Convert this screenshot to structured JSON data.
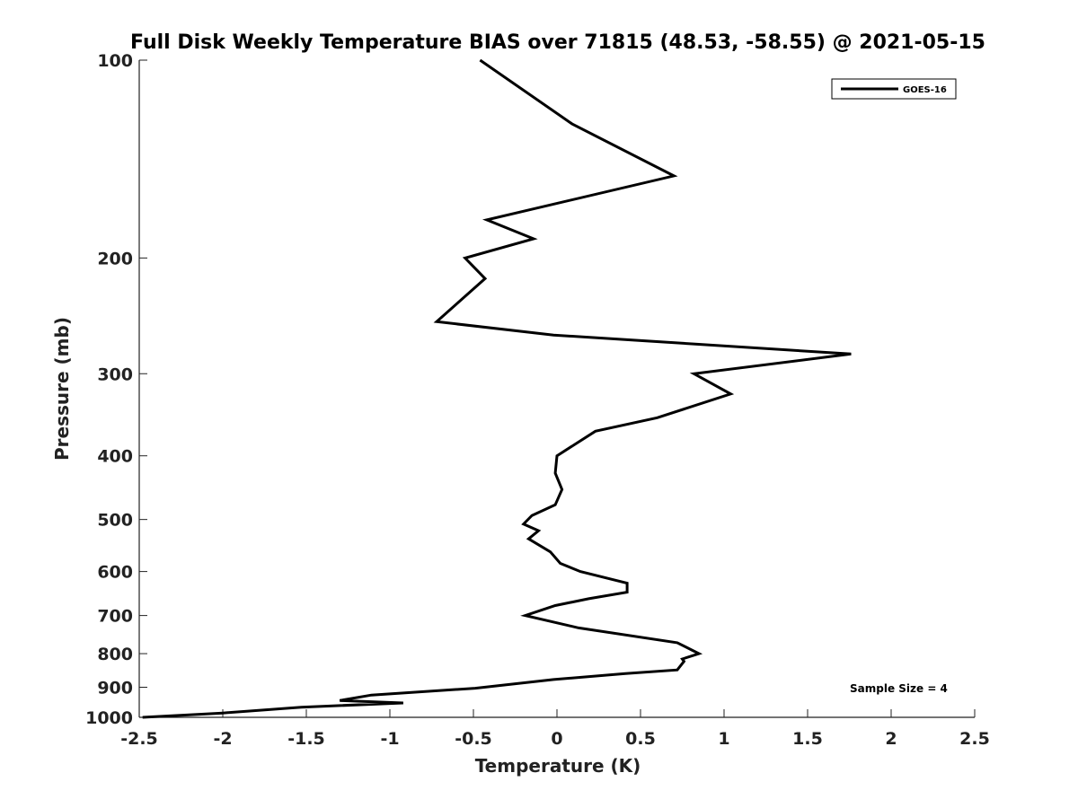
{
  "chart_data": {
    "type": "line",
    "title": "Full Disk Weekly Temperature BIAS over 71815 (48.53, -58.55) @ 2021-05-15",
    "xlabel": "Temperature (K)",
    "ylabel": "Pressure (mb)",
    "xlim": [
      -2.5,
      2.5
    ],
    "ylim": [
      100,
      1000
    ],
    "y_scale": "log",
    "y_reversed": true,
    "x_ticks": [
      -2.5,
      -2,
      -1.5,
      -1,
      -0.5,
      0,
      0.5,
      1,
      1.5,
      2,
      2.5
    ],
    "x_tick_labels": [
      "-2.5",
      "-2",
      "-1.5",
      "-1",
      "-0.5",
      "0",
      "0.5",
      "1",
      "1.5",
      "2",
      "2.5"
    ],
    "y_ticks": [
      100,
      200,
      300,
      400,
      500,
      600,
      700,
      800,
      900,
      1000
    ],
    "y_tick_labels": [
      "100",
      "200",
      "300",
      "400",
      "500",
      "600",
      "700",
      "800",
      "900",
      "1000"
    ],
    "grid": false,
    "legend_position": "top-right",
    "series": [
      {
        "name": "GOES-16",
        "color": "#000000",
        "points": [
          [
            -0.46,
            100
          ],
          [
            0.09,
            125
          ],
          [
            0.7,
            150
          ],
          [
            -0.42,
            175
          ],
          [
            -0.14,
            187
          ],
          [
            -0.55,
            200
          ],
          [
            -0.43,
            215
          ],
          [
            -0.72,
            250
          ],
          [
            -0.02,
            262
          ],
          [
            1.76,
            280
          ],
          [
            0.82,
            300
          ],
          [
            1.04,
            322
          ],
          [
            0.6,
            350
          ],
          [
            0.23,
            367
          ],
          [
            0.0,
            400
          ],
          [
            -0.01,
            425
          ],
          [
            0.03,
            450
          ],
          [
            -0.01,
            475
          ],
          [
            -0.15,
            493
          ],
          [
            -0.2,
            508
          ],
          [
            -0.11,
            520
          ],
          [
            -0.17,
            535
          ],
          [
            -0.04,
            560
          ],
          [
            0.02,
            583
          ],
          [
            0.14,
            600
          ],
          [
            0.42,
            625
          ],
          [
            0.42,
            645
          ],
          [
            0.19,
            660
          ],
          [
            -0.01,
            676
          ],
          [
            -0.19,
            700
          ],
          [
            0.13,
            731
          ],
          [
            0.72,
            770
          ],
          [
            0.85,
            800
          ],
          [
            0.75,
            815
          ],
          [
            0.76,
            822
          ],
          [
            0.72,
            847
          ],
          [
            0.41,
            858
          ],
          [
            -0.02,
            876
          ],
          [
            -0.49,
            903
          ],
          [
            -1.11,
            925
          ],
          [
            -1.3,
            943
          ],
          [
            -0.92,
            951
          ],
          [
            -1.53,
            965
          ],
          [
            -2.0,
            985
          ],
          [
            -2.48,
            1000
          ]
        ]
      }
    ],
    "annotations": [
      "Sample Size = 4"
    ]
  }
}
